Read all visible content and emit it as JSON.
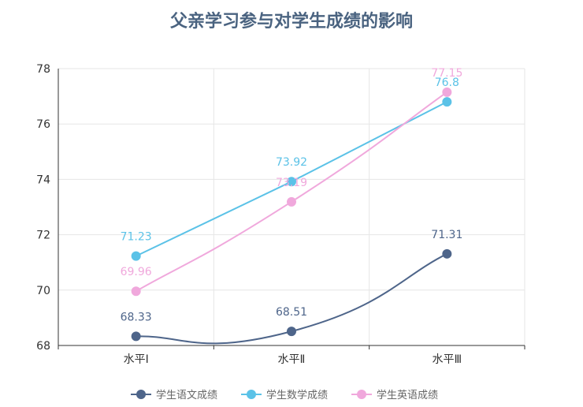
{
  "chart_data": {
    "type": "line",
    "title": "父亲学习参与对学生成绩的影响",
    "categories": [
      "水平Ⅰ",
      "水平Ⅱ",
      "水平Ⅲ"
    ],
    "ylim": [
      68,
      78
    ],
    "yticks": [
      68,
      70,
      72,
      74,
      76,
      78
    ],
    "grid": true,
    "legend_position": "bottom",
    "series": [
      {
        "name": "学生语文成绩",
        "values": [
          68.33,
          68.51,
          71.31
        ],
        "labels": [
          "68.33",
          "68.51",
          "71.31"
        ],
        "color": "#4e658a",
        "smooth": true
      },
      {
        "name": "学生数学成绩",
        "values": [
          71.23,
          73.92,
          76.8
        ],
        "labels": [
          "71.23",
          "73.92",
          "76.8"
        ],
        "color": "#5bc2e7",
        "smooth": false
      },
      {
        "name": "学生英语成绩",
        "values": [
          69.96,
          73.19,
          77.15
        ],
        "labels": [
          "69.96",
          "73.19",
          "77.15"
        ],
        "color": "#f0a8dc",
        "smooth": true
      }
    ]
  }
}
